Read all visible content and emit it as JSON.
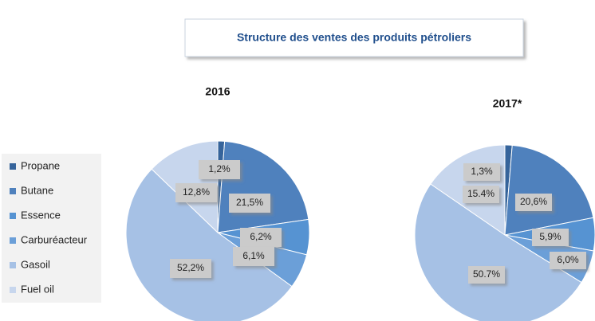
{
  "title": "Structure des ventes des produits pétroliers",
  "legend": {
    "labels": [
      "Propane",
      "Butane",
      "Essence",
      "Carburéacteur",
      "Gasoil",
      "Fuel oil"
    ],
    "colors": [
      "#36649b",
      "#4f81bd",
      "#5693d2",
      "#6b9fd8",
      "#a6c1e5",
      "#c7d6ed"
    ]
  },
  "chart_data": [
    {
      "type": "pie",
      "title": "2016",
      "values": [
        1.2,
        21.5,
        6.2,
        6.1,
        52.2,
        12.8
      ],
      "value_labels": [
        "1,2%",
        "21,5%",
        "6,2%",
        "6,1%",
        "52,2%",
        "12,8%"
      ]
    },
    {
      "type": "pie",
      "title": "2017*",
      "values": [
        1.3,
        20.6,
        5.9,
        6.0,
        50.7,
        15.4
      ],
      "value_labels": [
        "1,3%",
        "20,6%",
        "5,9%",
        "6,0%",
        "50.7%",
        "15.4%"
      ]
    }
  ]
}
